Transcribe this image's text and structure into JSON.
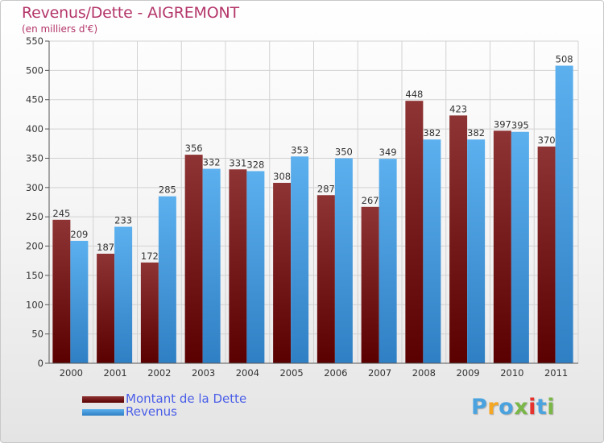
{
  "header": {
    "title": "Revenus/Dette - AIGREMONT",
    "subtitle": "(en milliers d'€)"
  },
  "legend": {
    "items": [
      {
        "label": "Montant de la Dette",
        "color": "#6b0d0d"
      },
      {
        "label": "Revenus",
        "color": "#4a9fe0"
      }
    ]
  },
  "logo": {
    "letters": [
      "P",
      "r",
      "o",
      "x",
      "i",
      "t",
      "i"
    ],
    "colors": [
      "#4aa3df",
      "#f5a623",
      "#4aa3df",
      "#7ab648",
      "#e5322d",
      "#4aa3df",
      "#7ab648"
    ]
  },
  "colors": {
    "dette_top": "#8e3434",
    "dette_bottom": "#5a0000",
    "revenus_top": "#5cb0ee",
    "revenus_bottom": "#2f7fc4"
  },
  "chart_data": {
    "type": "bar",
    "title": "Revenus/Dette - AIGREMONT",
    "subtitle": "(en milliers d'€)",
    "categories": [
      "2000",
      "2001",
      "2002",
      "2003",
      "2004",
      "2005",
      "2006",
      "2007",
      "2008",
      "2009",
      "2010",
      "2011"
    ],
    "series": [
      {
        "name": "Montant de la Dette",
        "values": [
          245,
          187,
          172,
          356,
          331,
          308,
          287,
          267,
          448,
          423,
          397,
          370
        ]
      },
      {
        "name": "Revenus",
        "values": [
          209,
          233,
          285,
          332,
          328,
          353,
          350,
          349,
          382,
          382,
          395,
          508
        ]
      }
    ],
    "ylim": [
      0,
      550
    ],
    "yticks": [
      0,
      50,
      100,
      150,
      200,
      250,
      300,
      350,
      400,
      450,
      500,
      550
    ],
    "grid": true,
    "legend_position": "bottom-left"
  }
}
